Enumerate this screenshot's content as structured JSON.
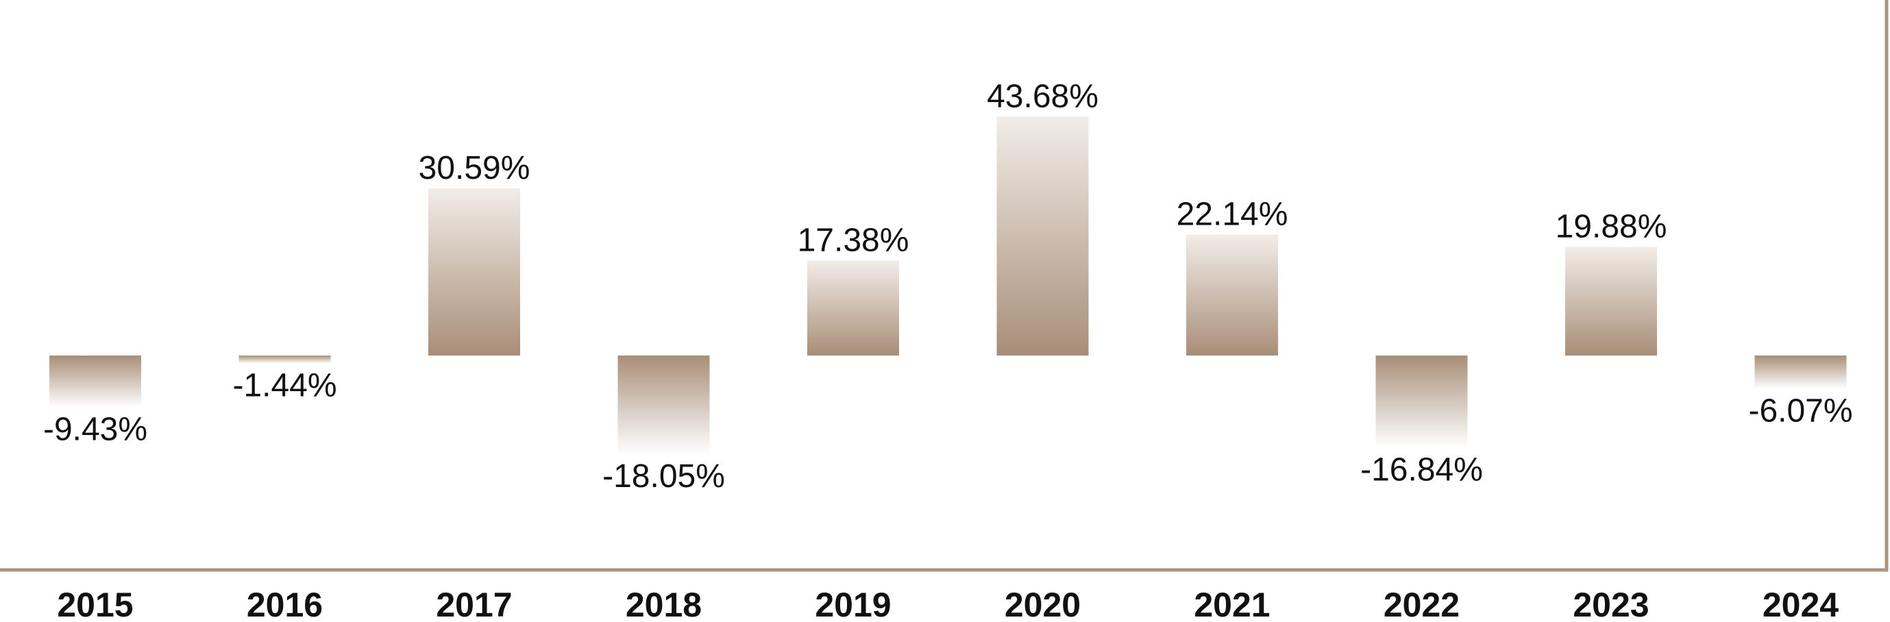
{
  "chart_data": {
    "type": "bar",
    "title": "",
    "xlabel": "",
    "ylabel": "",
    "categories": [
      "2015",
      "2016",
      "2017",
      "2018",
      "2019",
      "2020",
      "2021",
      "2022",
      "2023",
      "2024"
    ],
    "values": [
      -9.43,
      -1.44,
      30.59,
      -18.05,
      17.38,
      43.68,
      22.14,
      -16.84,
      19.88,
      -6.07
    ],
    "value_labels": [
      "-9.43%",
      "-1.44%",
      "30.59%",
      "-18.05%",
      "17.38%",
      "43.68%",
      "22.14%",
      "-16.84%",
      "19.88%",
      "-6.07%"
    ],
    "value_suffix": "%",
    "ylim": [
      -40,
      65
    ],
    "grid": false,
    "legend": "none",
    "colors": {
      "bar_dark": "#A88E78",
      "bar_light": "#FFFFFF",
      "frame": "#A89584",
      "text": "#111111"
    }
  }
}
